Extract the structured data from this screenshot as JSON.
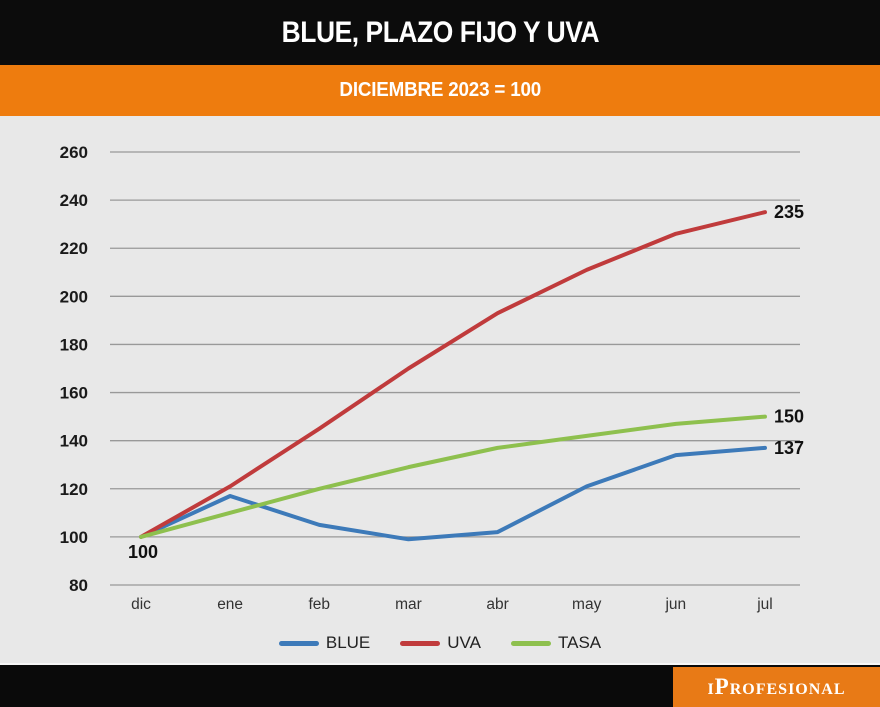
{
  "header": {
    "title": "BLUE, PLAZO FIJO Y UVA",
    "subtitle": "DICIEMBRE 2023 = 100"
  },
  "footer": {
    "brand": "iProfesional"
  },
  "colors": {
    "banner_orange": "#ee7c0e",
    "header_black": "#0c0c0c",
    "chart_background": "#e8e8e8",
    "gridline": "#999999",
    "tick_text": "#1a1a1a",
    "month_text": "#333333",
    "value_label_text": "#111111",
    "blue_line": "#3d7ab9",
    "red_line": "#c03b3c",
    "green_line": "#8ec04e"
  },
  "chart_data": {
    "type": "line",
    "title": "BLUE, PLAZO FIJO Y UVA",
    "subtitle": "DICIEMBRE 2023 = 100",
    "categories": [
      "dic",
      "ene",
      "feb",
      "mar",
      "abr",
      "may",
      "jun",
      "jul"
    ],
    "series": [
      {
        "name": "BLUE",
        "color": "#3d7ab9",
        "values": [
          100,
          117,
          105,
          99,
          102,
          121,
          134,
          137
        ],
        "end_label": "137"
      },
      {
        "name": "UVA",
        "color": "#c03b3c",
        "values": [
          100,
          121,
          145,
          170,
          193,
          211,
          226,
          235
        ],
        "end_label": "235"
      },
      {
        "name": "TASA",
        "color": "#8ec04e",
        "values": [
          100,
          110,
          120,
          129,
          137,
          142,
          147,
          150
        ],
        "end_label": "150"
      }
    ],
    "start_label": "100",
    "ylim": [
      80,
      260
    ],
    "yticks": [
      80,
      100,
      120,
      140,
      160,
      180,
      200,
      220,
      240,
      260
    ],
    "grid": true,
    "legend_position": "bottom",
    "legend_entries": [
      "BLUE",
      "UVA",
      "TASA"
    ]
  }
}
